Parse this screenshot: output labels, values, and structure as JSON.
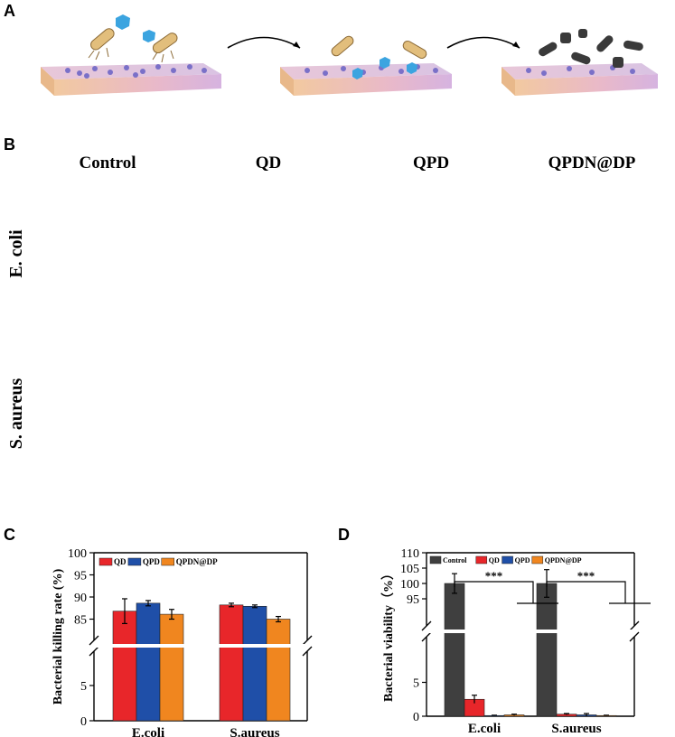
{
  "panels": {
    "a": "A",
    "b": "B",
    "c": "C",
    "d": "D"
  },
  "panel_b": {
    "columns": [
      "Control",
      "QD",
      "QPD",
      "QPDN@DP"
    ],
    "rows": [
      "E. coli",
      "S. aureus"
    ]
  },
  "chart_data": [
    {
      "type": "bar",
      "panel": "C",
      "ylabel": "Bacterial killing rate (%)",
      "categories": [
        "E.coli",
        "S.aureus"
      ],
      "series": [
        {
          "name": "QD",
          "color": "#e8262a",
          "values": [
            86.8,
            88.2
          ],
          "errors": [
            2.8,
            0.4
          ]
        },
        {
          "name": "QPD",
          "color": "#1f4fa8",
          "values": [
            88.6,
            87.9
          ],
          "errors": [
            0.6,
            0.3
          ]
        },
        {
          "name": "QPDN@DP",
          "color": "#f0861f",
          "values": [
            86.1,
            85.0
          ],
          "errors": [
            1.1,
            0.6
          ]
        }
      ],
      "ylim_lower": [
        0,
        10
      ],
      "ylim_upper": [
        80,
        100
      ],
      "yticks_lower": [
        "0",
        "5"
      ],
      "yticks_upper": [
        "85",
        "90",
        "95",
        "100"
      ],
      "axis_break": true,
      "legend_position": "top"
    },
    {
      "type": "bar",
      "panel": "D",
      "ylabel": "Bacterial viability（%）",
      "categories": [
        "E.coli",
        "S.aureus"
      ],
      "series": [
        {
          "name": "Control",
          "color": "#3f3f3f",
          "values": [
            100,
            100
          ],
          "errors": [
            3.2,
            4.5
          ]
        },
        {
          "name": "QD",
          "color": "#e8262a",
          "values": [
            2.5,
            0.3
          ],
          "errors": [
            0.6,
            0.1
          ]
        },
        {
          "name": "QPD",
          "color": "#1f4fa8",
          "values": [
            0.1,
            0.2
          ],
          "errors": [
            0.05,
            0.2
          ]
        },
        {
          "name": "QPDN@DP",
          "color": "#f0861f",
          "values": [
            0.2,
            0.1
          ],
          "errors": [
            0.1,
            0.05
          ]
        }
      ],
      "ylim_lower": [
        0,
        10
      ],
      "ylim_upper": [
        90,
        110
      ],
      "yticks_lower": [
        "0",
        "5"
      ],
      "yticks_upper": [
        "95",
        "100",
        "105",
        "110"
      ],
      "axis_break": true,
      "significance": "***",
      "legend_position": "top"
    }
  ]
}
